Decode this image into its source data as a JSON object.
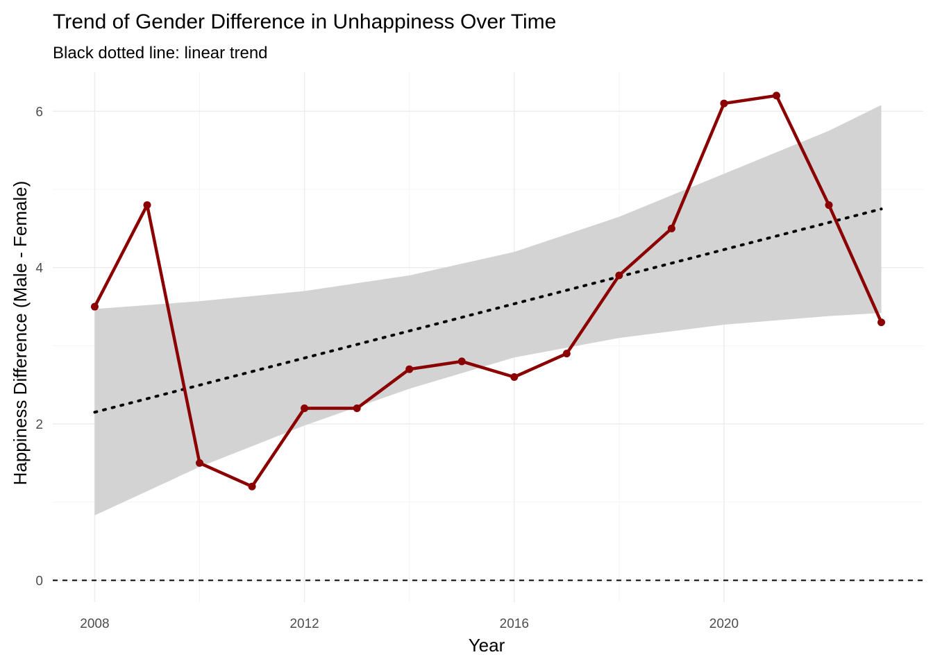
{
  "chart_data": {
    "type": "line",
    "title": "Trend of Gender Difference in Unhappiness Over Time",
    "subtitle": "Black dotted line: linear trend",
    "xlabel": "Year",
    "ylabel": "Happiness Difference (Male - Female)",
    "x_ticks": [
      2008,
      2012,
      2016,
      2020
    ],
    "y_ticks": [
      0,
      2,
      4,
      6
    ],
    "xlim": [
      2007.2,
      2023.8
    ],
    "ylim": [
      -0.28,
      6.5
    ],
    "grid": true,
    "series": [
      {
        "color": "#8b0000",
        "x": [
          2008,
          2009,
          2010,
          2011,
          2012,
          2013,
          2014,
          2015,
          2016,
          2017,
          2018,
          2019,
          2020,
          2021,
          2022,
          2023
        ],
        "values": [
          3.5,
          4.8,
          1.5,
          1.2,
          2.2,
          2.2,
          2.7,
          2.8,
          2.6,
          2.9,
          3.9,
          4.5,
          6.1,
          6.2,
          4.8,
          3.3
        ]
      }
    ],
    "trend_line": {
      "style": "dotted",
      "color": "#000000",
      "x": [
        2008,
        2023
      ],
      "values": [
        2.15,
        4.75
      ]
    },
    "confidence_band": {
      "color": "#d3d3d3",
      "x": [
        2008,
        2010,
        2012,
        2014,
        2016,
        2018,
        2020,
        2022,
        2023
      ],
      "lower": [
        0.83,
        1.45,
        1.98,
        2.45,
        2.85,
        3.1,
        3.27,
        3.38,
        3.42
      ],
      "upper": [
        3.47,
        3.57,
        3.7,
        3.9,
        4.2,
        4.65,
        5.2,
        5.75,
        6.08
      ]
    },
    "reference_line": {
      "style": "dashed",
      "color": "#000000",
      "y": 0
    }
  }
}
